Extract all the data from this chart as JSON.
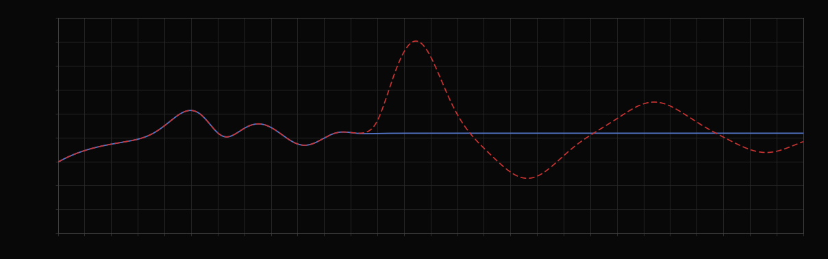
{
  "background_color": "#080808",
  "plot_bg_color": "#080808",
  "grid_color": "#2a2a2a",
  "axis_color": "#444444",
  "blue_line_color": "#5577cc",
  "red_line_color": "#cc3333",
  "figsize": [
    12.09,
    3.78
  ],
  "dpi": 100,
  "xlim": [
    0,
    100
  ],
  "ylim": [
    0,
    10
  ],
  "n_x_gridlines": 28,
  "n_y_gridlines": 9
}
